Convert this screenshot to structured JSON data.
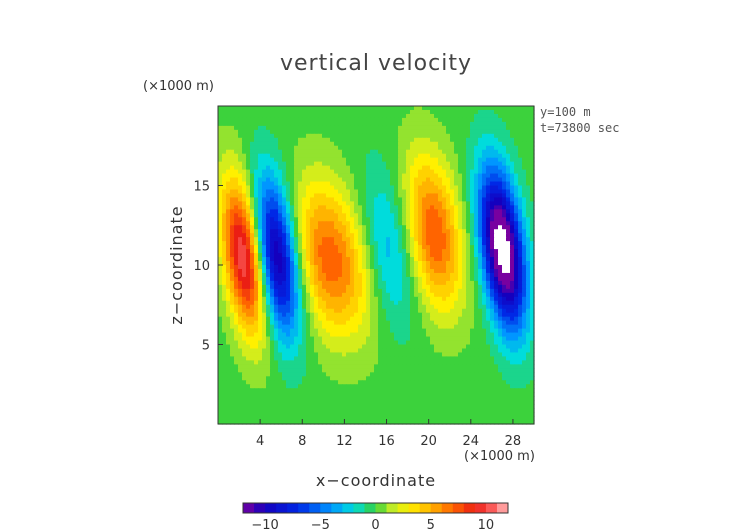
{
  "chart_data": {
    "type": "heatmap",
    "title": "vertical velocity",
    "xlabel": "x−coordinate",
    "ylabel": "z−coordinate",
    "x_unit": "(×1000 m)",
    "y_unit": "(×1000 m)",
    "annotations": [
      "y=100 m",
      "t=73800 sec"
    ],
    "xlim": [
      0,
      30
    ],
    "ylim": [
      0,
      20
    ],
    "x_ticks": [
      "4",
      "8",
      "12",
      "16",
      "20",
      "24",
      "28"
    ],
    "x_tick_values": [
      4,
      8,
      12,
      16,
      20,
      24,
      28
    ],
    "y_ticks": [
      "5",
      "10",
      "15"
    ],
    "y_tick_values": [
      5,
      10,
      15
    ],
    "colorbar": {
      "ticks": [
        "−10",
        "−5",
        "0",
        "5",
        "10"
      ],
      "tick_values": [
        -10,
        -5,
        0,
        5,
        10
      ],
      "range": [
        -12,
        12
      ],
      "levels": 24
    },
    "features": [
      {
        "x": 2.5,
        "z": 10.5,
        "value": 11
      },
      {
        "x": 5.5,
        "z": 10.5,
        "value": -11
      },
      {
        "x": 10.0,
        "z": 10.5,
        "value": 6
      },
      {
        "x": 13.0,
        "z": 10.0,
        "value": 3.5
      },
      {
        "x": 16.0,
        "z": 11.0,
        "value": -3.5
      },
      {
        "x": 20.5,
        "z": 12.0,
        "value": 7.5
      },
      {
        "x": 27.0,
        "z": 11.0,
        "value": -15
      }
    ],
    "grid": false
  }
}
